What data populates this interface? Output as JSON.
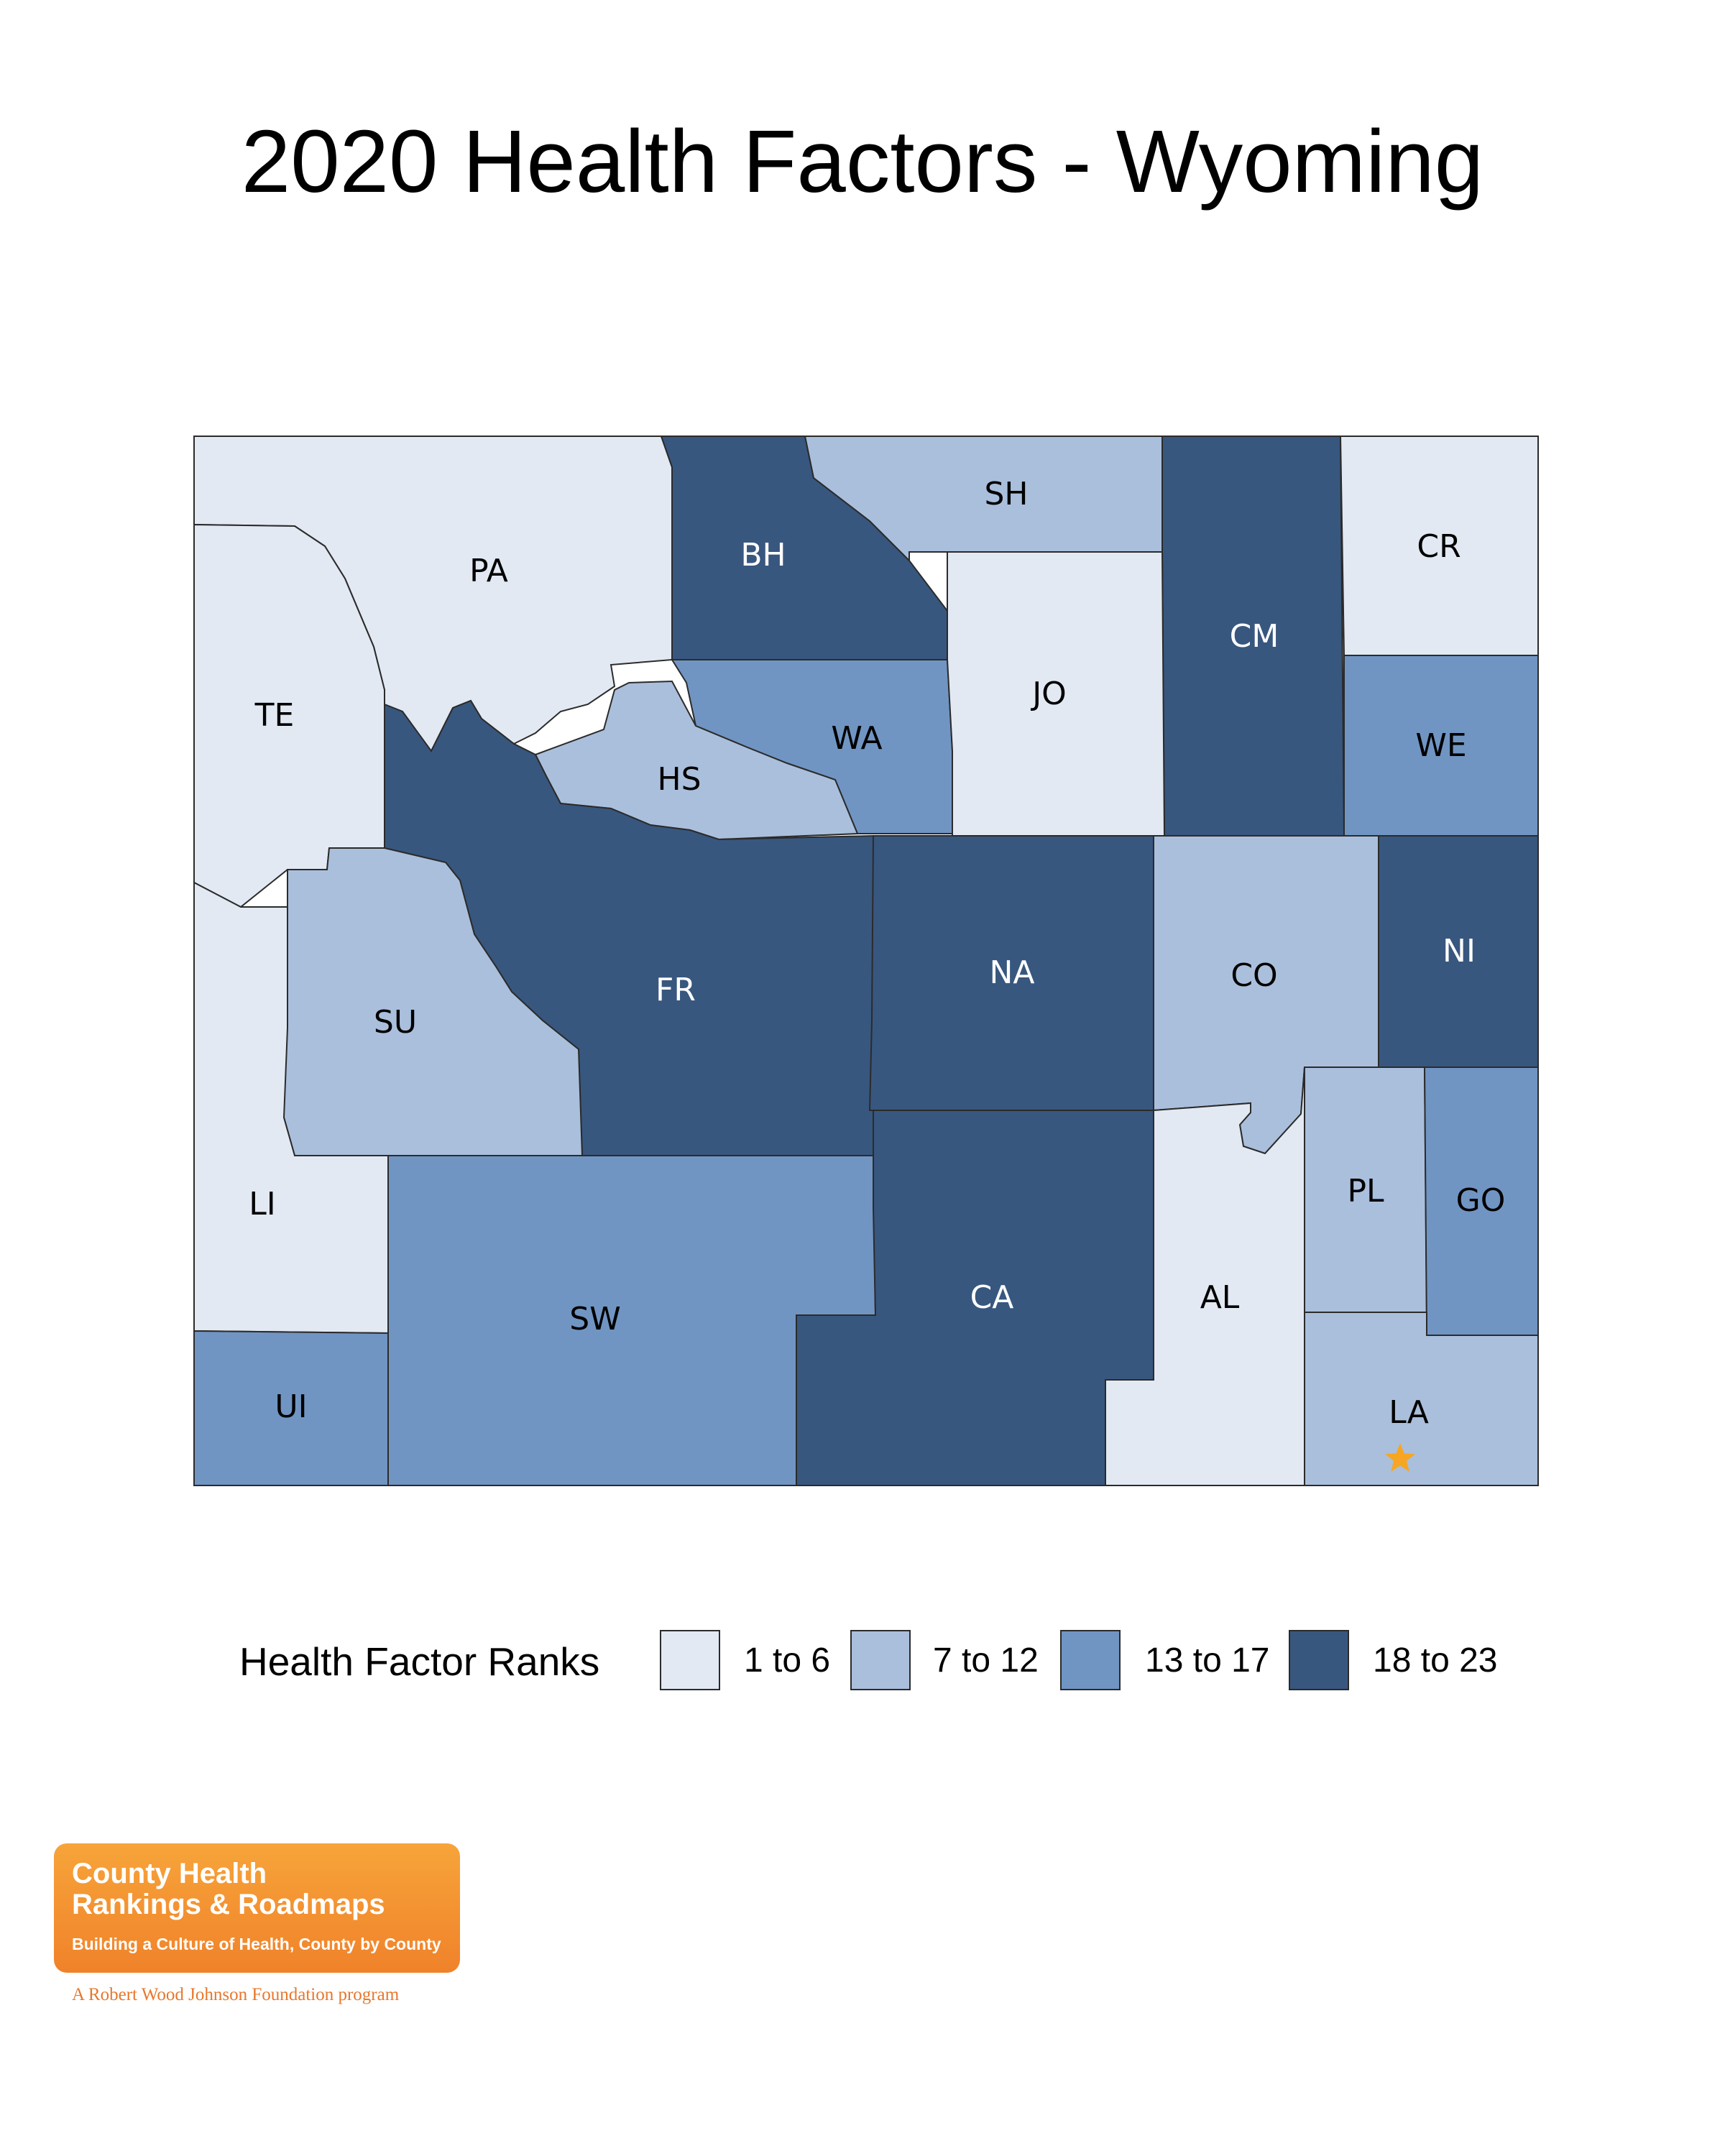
{
  "title": "2020 Health Factors - Wyoming",
  "legend": {
    "title": "Health Factor Ranks",
    "bins": [
      {
        "label": "1 to 6",
        "color": "#e2e9f3"
      },
      {
        "label": "7 to 12",
        "color": "#aabfdc"
      },
      {
        "label": "13 to 17",
        "color": "#7095c3"
      },
      {
        "label": "18 to 23",
        "color": "#38577f"
      }
    ]
  },
  "counties": [
    {
      "abbr": "PA",
      "rank_bin": 0
    },
    {
      "abbr": "BH",
      "rank_bin": 3
    },
    {
      "abbr": "SH",
      "rank_bin": 1
    },
    {
      "abbr": "CM",
      "rank_bin": 3
    },
    {
      "abbr": "CR",
      "rank_bin": 0
    },
    {
      "abbr": "TE",
      "rank_bin": 0
    },
    {
      "abbr": "WA",
      "rank_bin": 2
    },
    {
      "abbr": "JO",
      "rank_bin": 0
    },
    {
      "abbr": "WE",
      "rank_bin": 2
    },
    {
      "abbr": "HS",
      "rank_bin": 1
    },
    {
      "abbr": "FR",
      "rank_bin": 3
    },
    {
      "abbr": "NA",
      "rank_bin": 3
    },
    {
      "abbr": "CO",
      "rank_bin": 1
    },
    {
      "abbr": "NI",
      "rank_bin": 3
    },
    {
      "abbr": "SU",
      "rank_bin": 1
    },
    {
      "abbr": "LI",
      "rank_bin": 0
    },
    {
      "abbr": "PL",
      "rank_bin": 1
    },
    {
      "abbr": "GO",
      "rank_bin": 2
    },
    {
      "abbr": "SW",
      "rank_bin": 2
    },
    {
      "abbr": "CA",
      "rank_bin": 3
    },
    {
      "abbr": "AL",
      "rank_bin": 0
    },
    {
      "abbr": "UI",
      "rank_bin": 2
    },
    {
      "abbr": "LA",
      "rank_bin": 1
    }
  ],
  "marker": {
    "type": "star",
    "county": "LA",
    "color": "#f6a623"
  },
  "logo": {
    "line1": "County Health",
    "line2": "Rankings & Roadmaps",
    "tagline": "Building a Culture of Health, County by County",
    "footer": "A Robert Wood Johnson Foundation program"
  }
}
